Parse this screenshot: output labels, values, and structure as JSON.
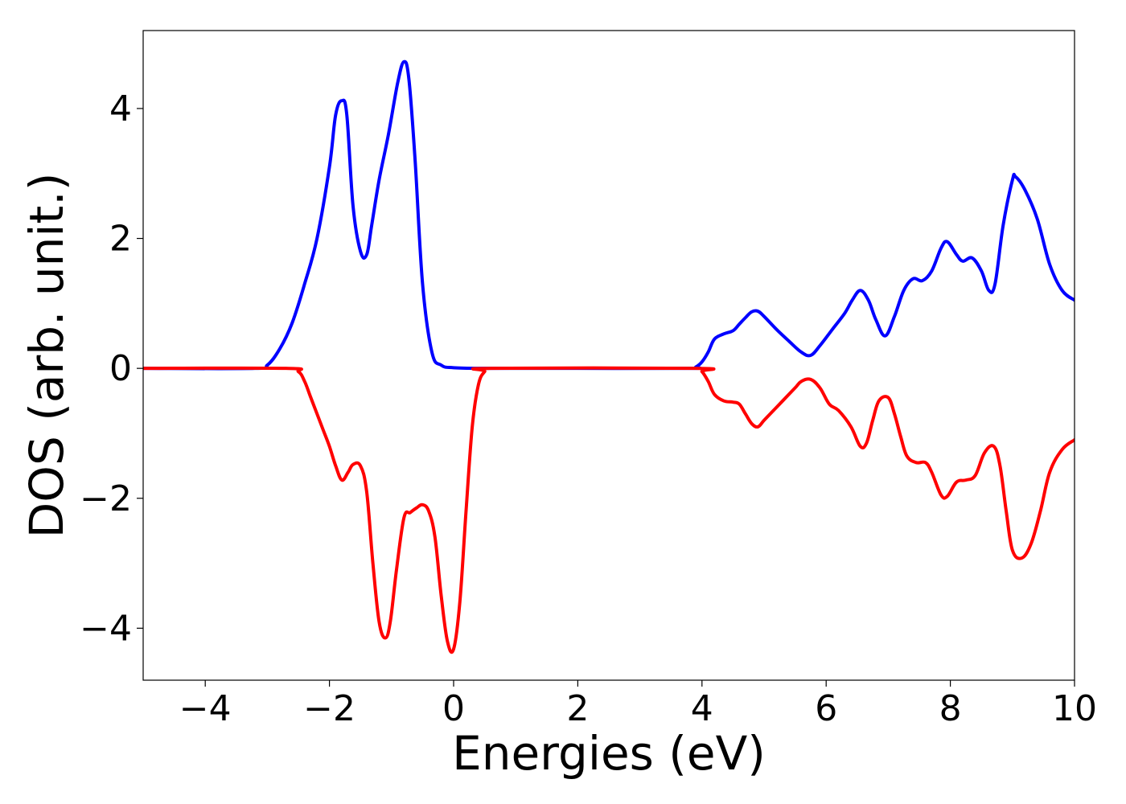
{
  "chart_data": {
    "type": "line",
    "title": "",
    "xlabel": "Energies (eV)",
    "ylabel": "DOS (arb. unit.)",
    "xlim": [
      -5,
      10
    ],
    "ylim": [
      -4.8,
      5.2
    ],
    "xticks": [
      -4,
      -2,
      0,
      2,
      4,
      6,
      8,
      10
    ],
    "xtick_labels": [
      "−4",
      "−2",
      "0",
      "2",
      "4",
      "6",
      "8",
      "10"
    ],
    "yticks": [
      -4,
      -2,
      0,
      2,
      4
    ],
    "ytick_labels": [
      "−4",
      "−2",
      "0",
      "2",
      "4"
    ],
    "grid": false,
    "legend": "none",
    "series": [
      {
        "color": "#0000ff",
        "x": [
          -5,
          -3.2,
          -3.0,
          -2.8,
          -2.6,
          -2.4,
          -2.2,
          -2.0,
          -1.9,
          -1.8,
          -1.72,
          -1.62,
          -1.5,
          -1.4,
          -1.32,
          -1.2,
          -1.05,
          -0.9,
          -0.8,
          -0.72,
          -0.62,
          -0.5,
          -0.35,
          -0.2,
          0,
          0.5,
          2,
          3.8,
          3.9,
          4.0,
          4.1,
          4.2,
          4.35,
          4.5,
          4.6,
          4.7,
          4.8,
          4.9,
          5.0,
          5.2,
          5.4,
          5.6,
          5.75,
          5.9,
          6.1,
          6.3,
          6.42,
          6.55,
          6.68,
          6.8,
          6.95,
          7.1,
          7.25,
          7.4,
          7.55,
          7.7,
          7.85,
          7.95,
          8.1,
          8.2,
          8.35,
          8.5,
          8.62,
          8.72,
          8.85,
          9.0,
          9.05,
          9.2,
          9.4,
          9.6,
          9.8,
          10.0
        ],
        "y": [
          0,
          0,
          0.05,
          0.3,
          0.7,
          1.3,
          2.0,
          3.1,
          3.9,
          4.12,
          3.9,
          2.5,
          1.8,
          1.75,
          2.2,
          2.9,
          3.6,
          4.4,
          4.72,
          4.45,
          3.2,
          1.3,
          0.25,
          0.05,
          0.01,
          0,
          0,
          0,
          0.02,
          0.1,
          0.25,
          0.45,
          0.53,
          0.58,
          0.68,
          0.78,
          0.87,
          0.88,
          0.8,
          0.6,
          0.42,
          0.25,
          0.2,
          0.35,
          0.6,
          0.85,
          1.05,
          1.2,
          1.05,
          0.75,
          0.5,
          0.8,
          1.2,
          1.38,
          1.35,
          1.5,
          1.85,
          1.95,
          1.75,
          1.65,
          1.7,
          1.5,
          1.2,
          1.3,
          2.2,
          2.9,
          2.95,
          2.75,
          2.3,
          1.6,
          1.2,
          1.05
        ]
      },
      {
        "color": "#ff0000",
        "x": [
          -5,
          -2.7,
          -2.5,
          -2.4,
          -2.3,
          -2.2,
          -2.1,
          -2.0,
          -1.9,
          -1.8,
          -1.7,
          -1.62,
          -1.5,
          -1.4,
          -1.3,
          -1.2,
          -1.1,
          -1.02,
          -0.92,
          -0.8,
          -0.7,
          -0.6,
          -0.5,
          -0.4,
          -0.3,
          -0.2,
          -0.1,
          0.0,
          0.1,
          0.2,
          0.3,
          0.4,
          0.5,
          0.6,
          3.9,
          4.0,
          4.1,
          4.2,
          4.35,
          4.5,
          4.6,
          4.7,
          4.8,
          4.9,
          5.0,
          5.15,
          5.3,
          5.5,
          5.6,
          5.75,
          5.9,
          6.05,
          6.2,
          6.4,
          6.55,
          6.65,
          6.75,
          6.85,
          7.0,
          7.1,
          7.2,
          7.3,
          7.45,
          7.6,
          7.7,
          7.85,
          7.95,
          8.1,
          8.25,
          8.4,
          8.55,
          8.7,
          8.8,
          8.9,
          9.0,
          9.15,
          9.3,
          9.45,
          9.6,
          9.8,
          10.0
        ],
        "y": [
          0,
          0,
          -0.05,
          -0.2,
          -0.45,
          -0.7,
          -0.95,
          -1.2,
          -1.5,
          -1.72,
          -1.6,
          -1.48,
          -1.5,
          -1.9,
          -3.0,
          -3.9,
          -4.15,
          -3.9,
          -3.1,
          -2.3,
          -2.22,
          -2.15,
          -2.1,
          -2.2,
          -2.6,
          -3.5,
          -4.2,
          -4.32,
          -3.6,
          -2.2,
          -0.9,
          -0.25,
          -0.05,
          0,
          0,
          -0.05,
          -0.2,
          -0.4,
          -0.5,
          -0.52,
          -0.55,
          -0.7,
          -0.85,
          -0.9,
          -0.8,
          -0.65,
          -0.5,
          -0.3,
          -0.2,
          -0.17,
          -0.3,
          -0.55,
          -0.65,
          -0.9,
          -1.2,
          -1.15,
          -0.8,
          -0.5,
          -0.45,
          -0.7,
          -1.05,
          -1.35,
          -1.45,
          -1.45,
          -1.6,
          -1.95,
          -1.97,
          -1.75,
          -1.72,
          -1.65,
          -1.3,
          -1.2,
          -1.5,
          -2.2,
          -2.8,
          -2.92,
          -2.7,
          -2.2,
          -1.6,
          -1.25,
          -1.1
        ]
      }
    ]
  }
}
